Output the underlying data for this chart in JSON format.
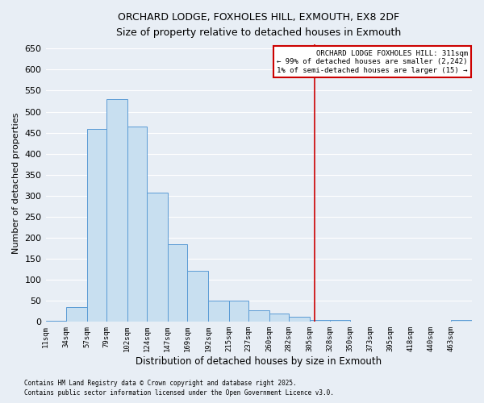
{
  "title": "ORCHARD LODGE, FOXHOLES HILL, EXMOUTH, EX8 2DF",
  "subtitle": "Size of property relative to detached houses in Exmouth",
  "xlabel": "Distribution of detached houses by size in Exmouth",
  "ylabel": "Number of detached properties",
  "bar_color": "#c8dff0",
  "bar_edge_color": "#5b9bd5",
  "background_color": "#e8eef5",
  "grid_color": "#ffffff",
  "bin_labels": [
    "11sqm",
    "34sqm",
    "57sqm",
    "79sqm",
    "102sqm",
    "124sqm",
    "147sqm",
    "169sqm",
    "192sqm",
    "215sqm",
    "237sqm",
    "260sqm",
    "282sqm",
    "305sqm",
    "328sqm",
    "350sqm",
    "373sqm",
    "395sqm",
    "418sqm",
    "440sqm",
    "463sqm"
  ],
  "bar_heights": [
    3,
    35,
    458,
    530,
    465,
    307,
    185,
    122,
    50,
    50,
    28,
    20,
    13,
    5,
    5,
    1,
    1,
    1,
    1,
    1,
    5
  ],
  "bin_edges": [
    11,
    34,
    57,
    79,
    102,
    124,
    147,
    169,
    192,
    215,
    237,
    260,
    282,
    305,
    328,
    350,
    373,
    395,
    418,
    440,
    463,
    486
  ],
  "vline_x": 311,
  "vline_color": "#cc0000",
  "ylim": [
    0,
    660
  ],
  "yticks": [
    0,
    50,
    100,
    150,
    200,
    250,
    300,
    350,
    400,
    450,
    500,
    550,
    600,
    650
  ],
  "annotation_title": "ORCHARD LODGE FOXHOLES HILL: 311sqm",
  "annotation_line1": "← 99% of detached houses are smaller (2,242)",
  "annotation_line2": "1% of semi-detached houses are larger (15) →",
  "annotation_box_color": "#ffffff",
  "annotation_border_color": "#cc0000",
  "footnote1": "Contains HM Land Registry data © Crown copyright and database right 2025.",
  "footnote2": "Contains public sector information licensed under the Open Government Licence v3.0."
}
